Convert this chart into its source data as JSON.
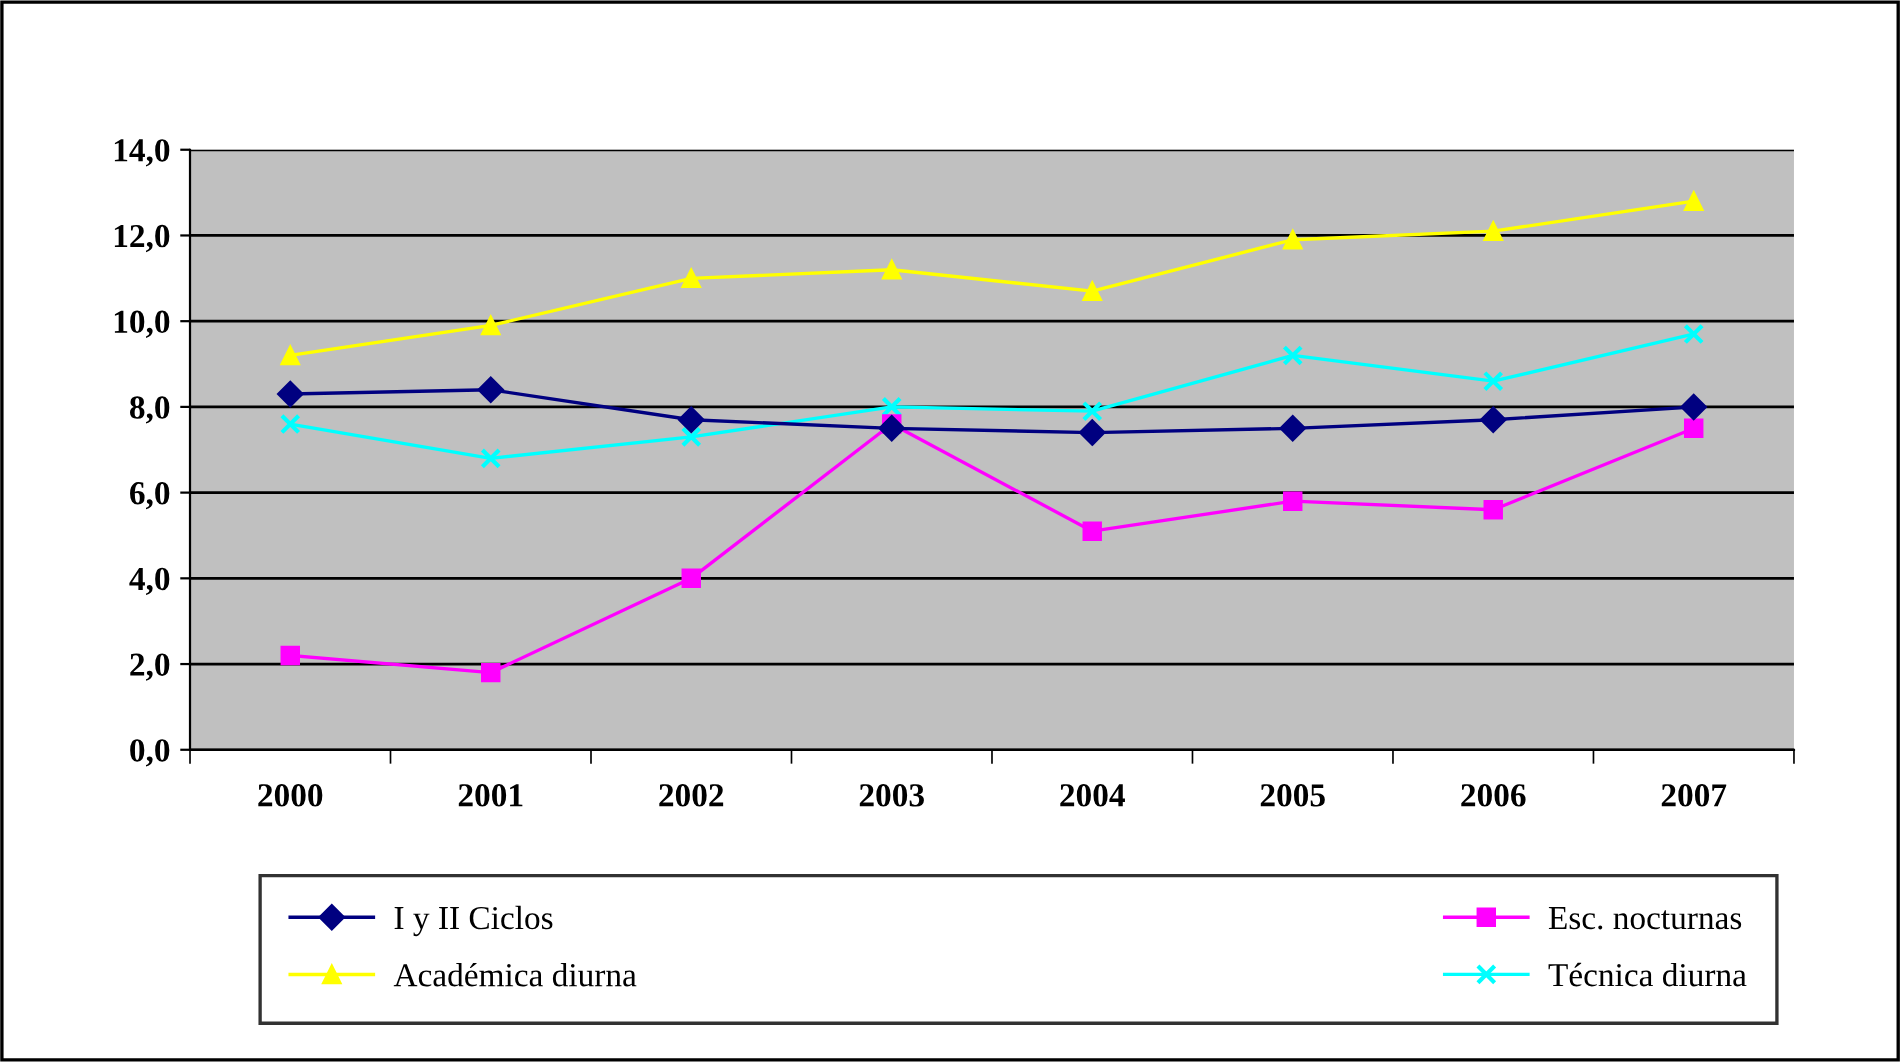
{
  "chart_data": {
    "type": "line",
    "categories": [
      "2000",
      "2001",
      "2002",
      "2003",
      "2004",
      "2005",
      "2006",
      "2007"
    ],
    "series": [
      {
        "name": "I y II Ciclos",
        "color": "#000080",
        "marker": "diamond",
        "values": [
          8.3,
          8.4,
          7.7,
          7.5,
          7.4,
          7.5,
          7.7,
          8.0
        ]
      },
      {
        "name": "Esc. nocturnas",
        "color": "#ff00ff",
        "marker": "square",
        "values": [
          2.2,
          1.8,
          4.0,
          7.6,
          5.1,
          5.8,
          5.6,
          7.5
        ]
      },
      {
        "name": "Académica diurna",
        "color": "#ffff00",
        "marker": "triangle",
        "values": [
          9.2,
          9.9,
          11.0,
          11.2,
          10.7,
          11.9,
          12.1,
          12.8
        ]
      },
      {
        "name": "Técnica diurna",
        "color": "#00ffff",
        "marker": "cross",
        "values": [
          7.6,
          6.8,
          7.3,
          8.0,
          7.9,
          9.2,
          8.6,
          9.7
        ]
      }
    ],
    "ylim": [
      0,
      14
    ],
    "yticks": [
      {
        "value": 0,
        "label": "0,0"
      },
      {
        "value": 2,
        "label": "2,0"
      },
      {
        "value": 4,
        "label": "4,0"
      },
      {
        "value": 6,
        "label": "6,0"
      },
      {
        "value": 8,
        "label": "8,0"
      },
      {
        "value": 10,
        "label": "10,0"
      },
      {
        "value": 12,
        "label": "12,0"
      },
      {
        "value": 14,
        "label": "14,0"
      }
    ],
    "grid": "y",
    "legend": "bottom"
  }
}
